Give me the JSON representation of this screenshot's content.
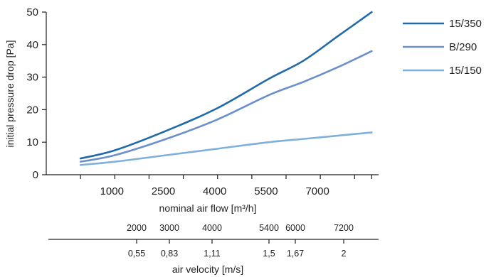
{
  "chart_data": {
    "type": "line",
    "ylabel": "initial pressure drop [Pa]",
    "xlabel": "nominal air flow [m³/h]",
    "ylim": [
      0,
      50
    ],
    "yticks": [
      "0",
      "10",
      "20",
      "30",
      "40",
      "50"
    ],
    "xlim": [
      -1000,
      8700
    ],
    "xticks": [
      "1000",
      "2500",
      "4000",
      "5500",
      "7000"
    ],
    "x": [
      0,
      1000,
      2500,
      4000,
      5500,
      6500,
      7500,
      8500
    ],
    "series": [
      {
        "name": "15/350",
        "color": "#1f6aa8",
        "values": [
          5,
          7.5,
          13.5,
          20.5,
          29.5,
          35,
          42.5,
          50
        ]
      },
      {
        "name": "B/290",
        "color": "#6a8fca",
        "values": [
          4,
          6,
          11,
          17,
          24.5,
          28.5,
          33,
          38
        ]
      },
      {
        "name": "15/150",
        "color": "#7fb0dc",
        "values": [
          3,
          4,
          6,
          8,
          10,
          11,
          12,
          13
        ]
      }
    ],
    "legend": "top-right",
    "grid": false,
    "secondary_axis": {
      "flow_row": [
        {
          "label": "2000",
          "x": 2000
        },
        {
          "label": "3000",
          "x": 3000
        },
        {
          "label": "4000",
          "x": 4000
        },
        {
          "label": "5400",
          "x": 5400
        },
        {
          "label": "6000",
          "x": 6000
        },
        {
          "label": "7200",
          "x": 7200
        }
      ],
      "velocity_row": [
        {
          "label": "0,55",
          "x": 2000
        },
        {
          "label": "0,83",
          "x": 3000
        },
        {
          "label": "1,11",
          "x": 4000
        },
        {
          "label": "1,5",
          "x": 5400
        },
        {
          "label": "1,67",
          "x": 6000
        },
        {
          "label": "2",
          "x": 7200
        }
      ],
      "label": "air velocity [m/s]"
    }
  }
}
